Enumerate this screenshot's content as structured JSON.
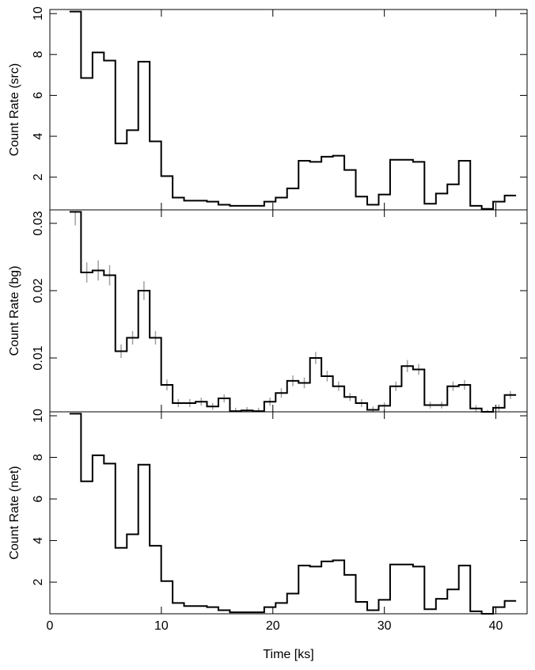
{
  "chart_data": [
    {
      "type": "step",
      "ylabel": "Count Rate (src)",
      "color": "#000000",
      "x": [
        2.28,
        3.31,
        4.34,
        5.36,
        6.39,
        7.42,
        8.44,
        9.47,
        10.5,
        11.52,
        12.55,
        13.58,
        14.6,
        15.63,
        16.66,
        17.68,
        18.71,
        19.74,
        20.76,
        21.79,
        22.82,
        23.84,
        24.87,
        25.9,
        26.92,
        27.95,
        28.98,
        30.0,
        31.03,
        32.06,
        33.08,
        34.11,
        35.14,
        36.16,
        37.19,
        38.22,
        39.24,
        40.27,
        41.3
      ],
      "values": [
        10.1,
        6.85,
        8.1,
        7.7,
        3.65,
        4.3,
        7.65,
        3.75,
        2.05,
        1.0,
        0.85,
        0.85,
        0.8,
        0.65,
        0.6,
        0.6,
        0.6,
        0.8,
        1.0,
        1.45,
        2.8,
        2.75,
        3.0,
        3.05,
        2.35,
        1.05,
        0.65,
        1.15,
        2.85,
        2.85,
        2.75,
        0.7,
        1.2,
        1.65,
        2.8,
        0.6,
        0.45,
        0.8,
        1.1
      ],
      "xlim": [
        0,
        42.8
      ],
      "ylim": [
        0.4,
        10.2
      ],
      "yticks": [
        2,
        4,
        6,
        8,
        10
      ]
    },
    {
      "type": "step",
      "ylabel": "Count Rate (bg)",
      "color": "#000000",
      "error_color": "#a0a0a0",
      "x": [
        2.28,
        3.31,
        4.34,
        5.36,
        6.39,
        7.42,
        8.44,
        9.47,
        10.5,
        11.52,
        12.55,
        13.58,
        14.6,
        15.63,
        16.66,
        17.68,
        18.71,
        19.74,
        20.76,
        21.79,
        22.82,
        23.84,
        24.87,
        25.9,
        26.92,
        27.95,
        28.98,
        30.0,
        31.03,
        32.06,
        33.08,
        34.11,
        35.14,
        36.16,
        37.19,
        38.22,
        39.24,
        40.27,
        41.3
      ],
      "values": [
        0.0317,
        0.0227,
        0.023,
        0.0223,
        0.011,
        0.013,
        0.02,
        0.013,
        0.006,
        0.0033,
        0.0033,
        0.0035,
        0.0028,
        0.004,
        0.0021,
        0.0022,
        0.0021,
        0.0035,
        0.0048,
        0.0066,
        0.0063,
        0.01,
        0.0073,
        0.0058,
        0.0042,
        0.0033,
        0.0023,
        0.0029,
        0.0058,
        0.0088,
        0.0083,
        0.003,
        0.003,
        0.0058,
        0.006,
        0.0025,
        0.0019,
        0.0026,
        0.0045
      ],
      "errors": [
        0.002,
        0.0015,
        0.0015,
        0.0015,
        0.001,
        0.001,
        0.0014,
        0.001,
        0.0008,
        0.0006,
        0.0006,
        0.0006,
        0.0005,
        0.0006,
        0.0005,
        0.0005,
        0.0005,
        0.0006,
        0.0007,
        0.0008,
        0.0008,
        0.0009,
        0.0008,
        0.0007,
        0.0006,
        0.0006,
        0.0005,
        0.0005,
        0.0007,
        0.0009,
        0.0008,
        0.0005,
        0.0005,
        0.0007,
        0.0007,
        0.0005,
        0.0004,
        0.0005,
        0.0006
      ],
      "xlim": [
        0,
        42.8
      ],
      "ylim": [
        0.002,
        0.032
      ],
      "yticks": [
        0.01,
        0.02,
        0.03
      ]
    },
    {
      "type": "step",
      "ylabel": "Count Rate (net)",
      "xlabel": "Time [ks]",
      "color": "#000000",
      "x": [
        2.28,
        3.31,
        4.34,
        5.36,
        6.39,
        7.42,
        8.44,
        9.47,
        10.5,
        11.52,
        12.55,
        13.58,
        14.6,
        15.63,
        16.66,
        17.68,
        18.71,
        19.74,
        20.76,
        21.79,
        22.82,
        23.84,
        24.87,
        25.9,
        26.92,
        27.95,
        28.98,
        30.0,
        31.03,
        32.06,
        33.08,
        34.11,
        35.14,
        36.16,
        37.19,
        38.22,
        39.24,
        40.27,
        41.3
      ],
      "values": [
        10.1,
        6.85,
        8.1,
        7.7,
        3.65,
        4.3,
        7.65,
        3.75,
        2.05,
        1.0,
        0.85,
        0.85,
        0.8,
        0.65,
        0.55,
        0.55,
        0.55,
        0.8,
        1.0,
        1.45,
        2.8,
        2.75,
        3.0,
        3.05,
        2.35,
        1.05,
        0.65,
        1.15,
        2.85,
        2.85,
        2.75,
        0.7,
        1.2,
        1.65,
        2.8,
        0.6,
        0.45,
        0.8,
        1.1
      ],
      "xlim": [
        0,
        42.8
      ],
      "ylim": [
        0.48,
        10.19
      ],
      "yticks": [
        2,
        4,
        6,
        8,
        10
      ],
      "xticks": [
        0,
        10,
        20,
        30,
        40
      ]
    }
  ]
}
